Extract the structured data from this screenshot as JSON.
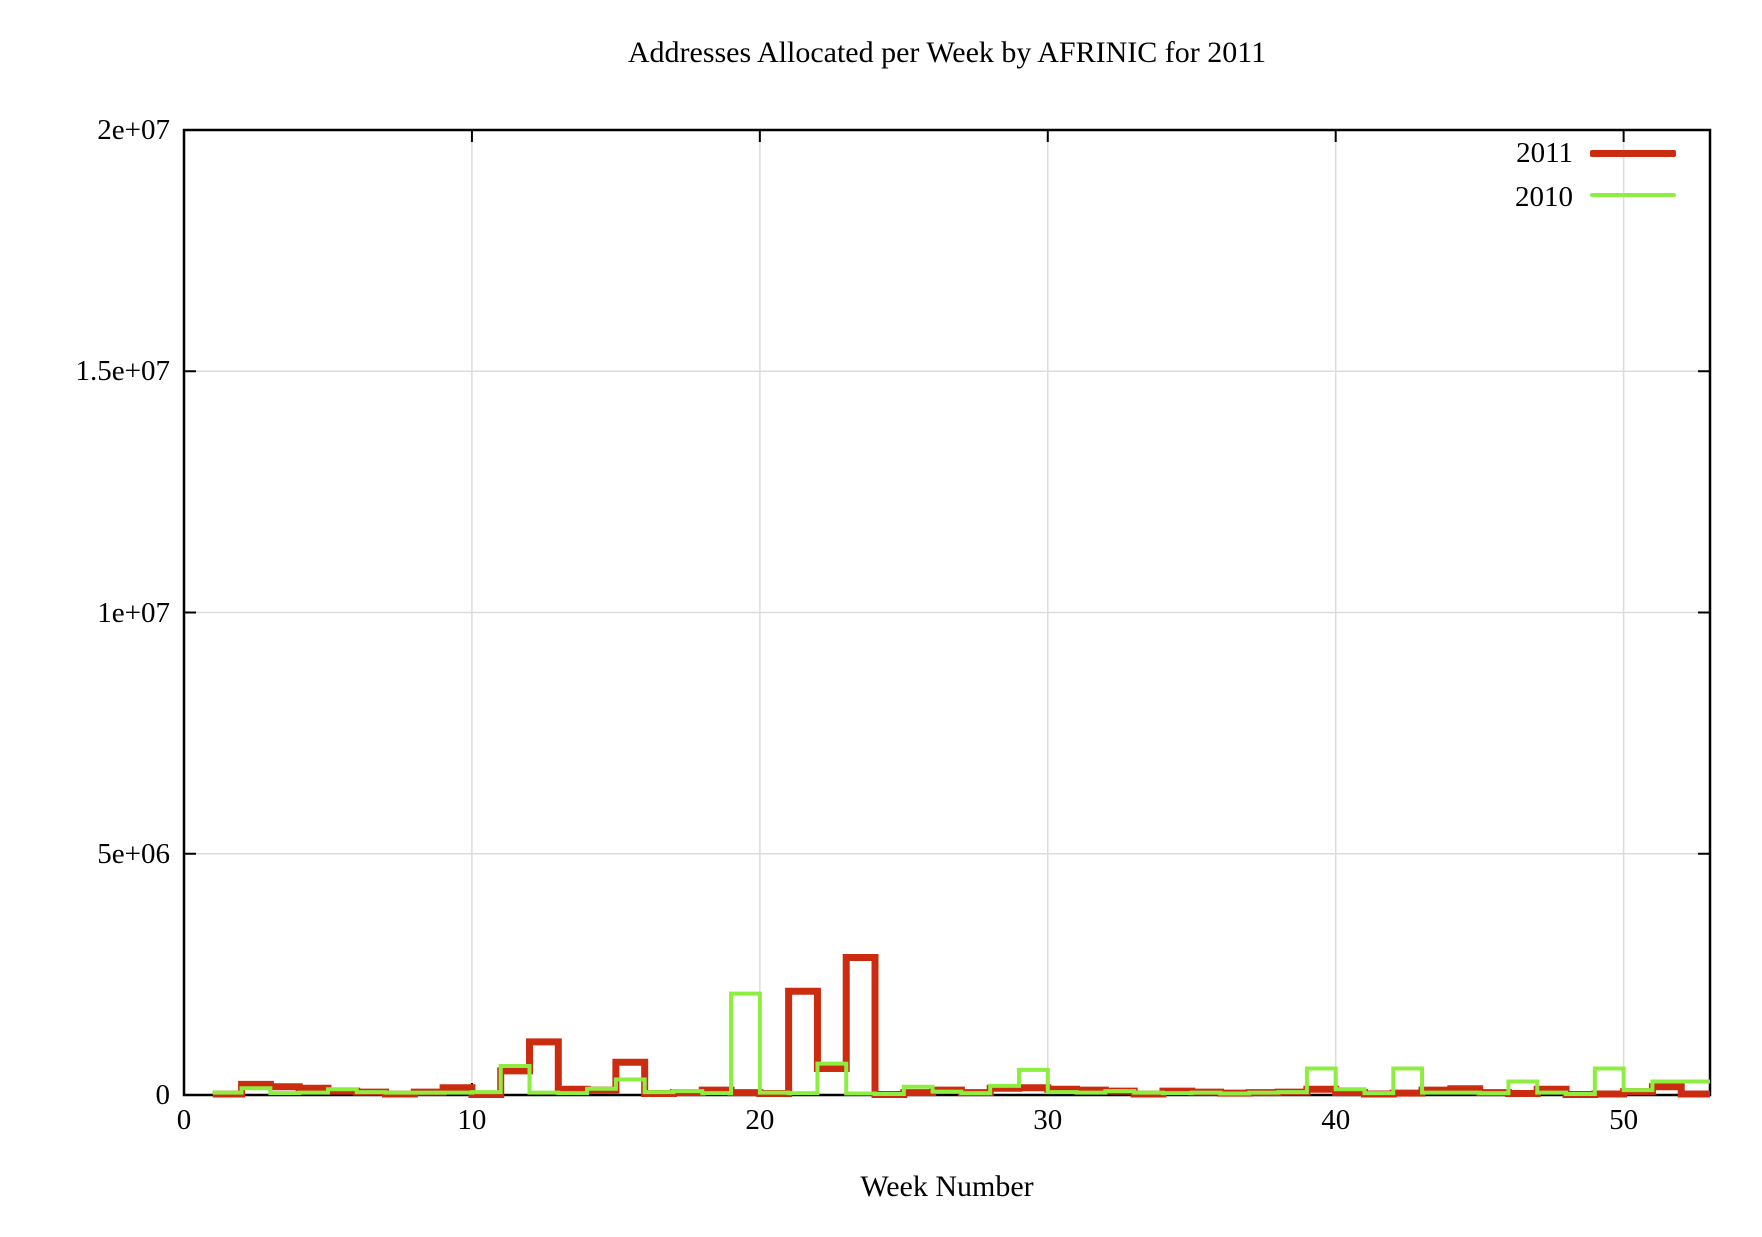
{
  "title": "Addresses Allocated per Week by AFRINIC for 2011",
  "axes": {
    "x_label": "Week Number",
    "x_ticks": [
      {
        "value": 0,
        "label": "0"
      },
      {
        "value": 10,
        "label": "10"
      },
      {
        "value": 20,
        "label": "20"
      },
      {
        "value": 30,
        "label": "30"
      },
      {
        "value": 40,
        "label": "40"
      },
      {
        "value": 50,
        "label": "50"
      }
    ],
    "y_ticks": [
      {
        "value": 0,
        "label": "0"
      },
      {
        "value": 5000000,
        "label": "5e+06"
      },
      {
        "value": 10000000,
        "label": "1e+07"
      },
      {
        "value": 15000000,
        "label": "1.5e+07"
      },
      {
        "value": 20000000,
        "label": "2e+07"
      }
    ]
  },
  "colors": {
    "series_2011": "#cb2c10",
    "series_2010": "#8dee3f",
    "grid": "#dcdcdc",
    "border": "#000000"
  },
  "chart_data": {
    "type": "line",
    "style": "steps",
    "title": "Addresses Allocated per Week by AFRINIC for 2011",
    "xlabel": "Week Number",
    "ylabel": "",
    "xlim": [
      0,
      53
    ],
    "ylim": [
      0,
      20000000
    ],
    "grid": true,
    "legend_position": "top-right",
    "start_week": 1,
    "weeks": [
      1,
      2,
      3,
      4,
      5,
      6,
      7,
      8,
      9,
      10,
      11,
      12,
      13,
      14,
      15,
      16,
      17,
      18,
      19,
      20,
      21,
      22,
      23,
      24,
      25,
      26,
      27,
      28,
      29,
      30,
      31,
      32,
      33,
      34,
      35,
      36,
      37,
      38,
      39,
      40,
      41,
      42,
      43,
      44,
      45,
      46,
      47,
      48,
      49,
      50,
      51,
      52
    ],
    "series": [
      {
        "name": "2011",
        "color": "#cb2c10",
        "line_width": 7,
        "values": [
          20000,
          220000,
          170000,
          140000,
          80000,
          60000,
          20000,
          60000,
          150000,
          10000,
          500000,
          1100000,
          120000,
          100000,
          680000,
          30000,
          50000,
          100000,
          50000,
          30000,
          2150000,
          550000,
          2850000,
          10000,
          50000,
          100000,
          50000,
          140000,
          150000,
          120000,
          100000,
          80000,
          20000,
          80000,
          60000,
          40000,
          50000,
          60000,
          120000,
          50000,
          20000,
          40000,
          100000,
          130000,
          50000,
          30000,
          120000,
          10000,
          20000,
          70000,
          170000,
          20000
        ]
      },
      {
        "name": "2010",
        "color": "#8dee3f",
        "line_width": 4,
        "values": [
          50000,
          140000,
          40000,
          50000,
          120000,
          60000,
          50000,
          50000,
          50000,
          60000,
          600000,
          50000,
          40000,
          130000,
          320000,
          60000,
          80000,
          40000,
          2100000,
          50000,
          40000,
          650000,
          30000,
          20000,
          170000,
          70000,
          40000,
          190000,
          520000,
          60000,
          50000,
          80000,
          50000,
          40000,
          50000,
          30000,
          50000,
          60000,
          550000,
          120000,
          40000,
          550000,
          50000,
          50000,
          40000,
          280000,
          50000,
          20000,
          550000,
          100000,
          280000,
          280000
        ]
      }
    ]
  }
}
